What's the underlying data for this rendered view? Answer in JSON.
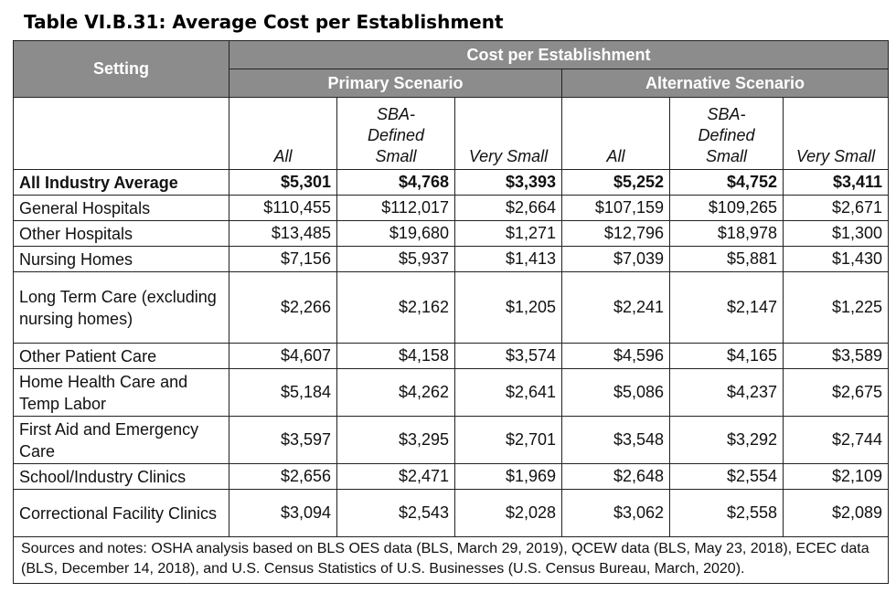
{
  "title": "Table VI.B.31: Average Cost per Establishment",
  "header": {
    "setting": "Setting",
    "cost": "Cost per Establishment",
    "primary": "Primary Scenario",
    "alternative": "Alternative Scenario",
    "primary_cols": [
      "All",
      "SBA-Defined Small",
      "Very Small"
    ],
    "alternative_cols": [
      "All",
      "SBA-Defined Small",
      "Very Small"
    ]
  },
  "rows": [
    {
      "setting": "All Industry Average",
      "values": [
        "$5,301",
        "$4,768",
        "$3,393",
        "$5,252",
        "$4,752",
        "$3,411"
      ]
    },
    {
      "setting": "General Hospitals",
      "values": [
        "$110,455",
        "$112,017",
        "$2,664",
        "$107,159",
        "$109,265",
        "$2,671"
      ]
    },
    {
      "setting": "Other Hospitals",
      "values": [
        "$13,485",
        "$19,680",
        "$1,271",
        "$12,796",
        "$18,978",
        "$1,300"
      ]
    },
    {
      "setting": "Nursing Homes",
      "values": [
        "$7,156",
        "$5,937",
        "$1,413",
        "$7,039",
        "$5,881",
        "$1,430"
      ]
    },
    {
      "setting": "Long Term Care (excluding nursing homes)",
      "values": [
        "$2,266",
        "$2,162",
        "$1,205",
        "$2,241",
        "$2,147",
        "$1,225"
      ]
    },
    {
      "setting": "Other Patient Care",
      "values": [
        "$4,607",
        "$4,158",
        "$3,574",
        "$4,596",
        "$4,165",
        "$3,589"
      ]
    },
    {
      "setting": "Home Health Care and Temp Labor",
      "values": [
        "$5,184",
        "$4,262",
        "$2,641",
        "$5,086",
        "$4,237",
        "$2,675"
      ]
    },
    {
      "setting": "First Aid and Emergency Care",
      "values": [
        "$3,597",
        "$3,295",
        "$2,701",
        "$3,548",
        "$3,292",
        "$2,744"
      ]
    },
    {
      "setting": "School/Industry Clinics",
      "values": [
        "$2,656",
        "$2,471",
        "$1,969",
        "$2,648",
        "$2,554",
        "$2,109"
      ]
    },
    {
      "setting": "Correctional Facility Clinics",
      "values": [
        "$3,094",
        "$2,543",
        "$2,028",
        "$3,062",
        "$2,558",
        "$2,089"
      ]
    }
  ],
  "notes": "Sources and notes: OSHA analysis based on BLS OES data (BLS, March 29, 2019), QCEW data (BLS, May 23, 2018), ECEC data (BLS, December 14, 2018), and U.S. Census Statistics of U.S. Businesses (U.S. Census Bureau, March, 2020)."
}
